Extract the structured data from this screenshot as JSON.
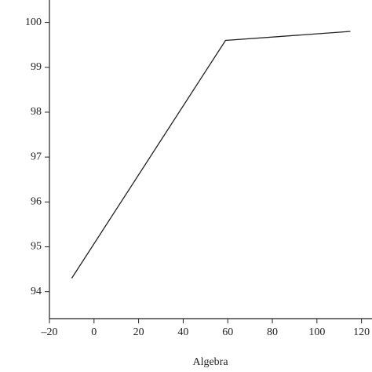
{
  "chart_data": {
    "type": "line",
    "x_label": "Algebra",
    "x": [
      -10,
      59,
      115
    ],
    "values": [
      94.3,
      99.6,
      99.8
    ],
    "color": "#222222",
    "xlim": [
      -20,
      124
    ],
    "xticks": [
      {
        "value": -20,
        "label": "–20"
      },
      0,
      20,
      40,
      60,
      80,
      100,
      120
    ],
    "ylim": [
      93.4,
      100.5
    ],
    "yticks": [
      94,
      95,
      96,
      97,
      98,
      99,
      100
    ],
    "grid": false
  }
}
